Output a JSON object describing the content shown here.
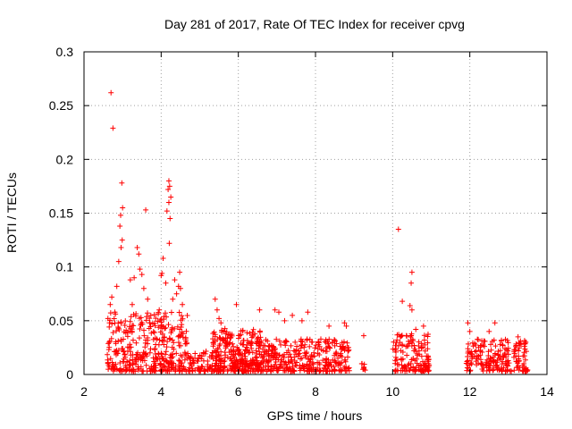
{
  "chart_data": {
    "type": "scatter",
    "title": "Day 281 of 2017, Rate Of TEC Index for receiver cpvg",
    "xlabel": "GPS time / hours",
    "ylabel": "ROTI / TECUs",
    "xlim": [
      2,
      14
    ],
    "ylim": [
      0,
      0.3
    ],
    "x_ticks": [
      "2",
      "4",
      "6",
      "8",
      "10",
      "12",
      "14"
    ],
    "y_ticks": [
      "0",
      "0.05",
      "0.1",
      "0.15",
      "0.2",
      "0.25",
      "0.3"
    ],
    "grid": true,
    "marker": "+",
    "marker_color": "#ff0000",
    "series": [
      {
        "points": [
          [
            2.7,
            0.262
          ],
          [
            2.75,
            0.229
          ],
          [
            2.98,
            0.178
          ],
          [
            3.0,
            0.155
          ],
          [
            2.95,
            0.148
          ],
          [
            2.93,
            0.138
          ],
          [
            2.99,
            0.125
          ],
          [
            2.96,
            0.118
          ],
          [
            2.9,
            0.105
          ],
          [
            2.85,
            0.082
          ],
          [
            2.72,
            0.072
          ],
          [
            2.68,
            0.065
          ],
          [
            2.8,
            0.058
          ],
          [
            2.62,
            0.052
          ],
          [
            2.66,
            0.048
          ],
          [
            3.6,
            0.153
          ],
          [
            3.38,
            0.118
          ],
          [
            3.42,
            0.112
          ],
          [
            3.45,
            0.098
          ],
          [
            3.5,
            0.093
          ],
          [
            3.3,
            0.09
          ],
          [
            3.2,
            0.088
          ],
          [
            3.55,
            0.08
          ],
          [
            3.65,
            0.07
          ],
          [
            3.25,
            0.065
          ],
          [
            4.2,
            0.18
          ],
          [
            4.22,
            0.175
          ],
          [
            4.18,
            0.172
          ],
          [
            4.25,
            0.165
          ],
          [
            4.2,
            0.16
          ],
          [
            4.15,
            0.152
          ],
          [
            4.23,
            0.145
          ],
          [
            4.21,
            0.122
          ],
          [
            4.05,
            0.108
          ],
          [
            4.02,
            0.094
          ],
          [
            4.0,
            0.092
          ],
          [
            4.48,
            0.095
          ],
          [
            4.35,
            0.088
          ],
          [
            4.45,
            0.082
          ],
          [
            4.5,
            0.08
          ],
          [
            4.4,
            0.075
          ],
          [
            4.12,
            0.085
          ],
          [
            4.3,
            0.07
          ],
          [
            4.55,
            0.065
          ],
          [
            3.95,
            0.06
          ],
          [
            5.4,
            0.07
          ],
          [
            5.45,
            0.06
          ],
          [
            5.5,
            0.052
          ],
          [
            5.55,
            0.048
          ],
          [
            5.95,
            0.065
          ],
          [
            6.55,
            0.06
          ],
          [
            6.95,
            0.06
          ],
          [
            7.05,
            0.058
          ],
          [
            7.4,
            0.055
          ],
          [
            7.2,
            0.05
          ],
          [
            7.8,
            0.058
          ],
          [
            7.65,
            0.05
          ],
          [
            8.35,
            0.045
          ],
          [
            8.75,
            0.048
          ],
          [
            8.8,
            0.045
          ],
          [
            9.25,
            0.036
          ],
          [
            9.2,
            0.01
          ],
          [
            9.25,
            0.006
          ],
          [
            10.15,
            0.135
          ],
          [
            10.25,
            0.068
          ],
          [
            10.5,
            0.095
          ],
          [
            10.48,
            0.085
          ],
          [
            10.45,
            0.064
          ],
          [
            10.5,
            0.06
          ],
          [
            10.8,
            0.045
          ],
          [
            10.6,
            0.042
          ],
          [
            10.1,
            0.03
          ],
          [
            10.2,
            0.035
          ],
          [
            11.95,
            0.048
          ],
          [
            12.0,
            0.04
          ],
          [
            12.65,
            0.048
          ],
          [
            12.5,
            0.04
          ],
          [
            13.25,
            0.035
          ],
          [
            13.45,
            0.03
          ],
          [
            13.4,
            0.01
          ]
        ]
      }
    ]
  }
}
